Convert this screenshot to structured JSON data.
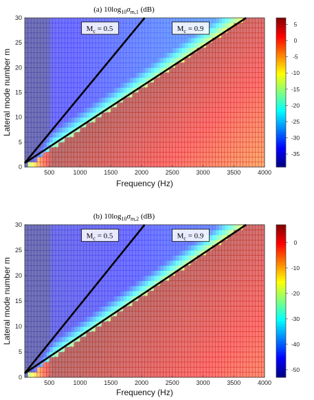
{
  "chart_data": [
    {
      "type": "heatmap",
      "title": "(a) 10log",
      "title_sub": "10",
      "title_sigma": "σ",
      "title_sigma_sub": "m,1",
      "title_unit": "(dB)",
      "xlabel": "Frequency  (Hz)",
      "ylabel": "Lateral mode number m",
      "xlim": [
        100,
        4000
      ],
      "ylim": [
        0,
        30
      ],
      "xticks": [
        500,
        1000,
        1500,
        2000,
        2500,
        3000,
        3500,
        4000
      ],
      "yticks": [
        0,
        5,
        10,
        15,
        20,
        25,
        30
      ],
      "colorbar": {
        "range": [
          -39,
          7
        ],
        "ticks": [
          5,
          0,
          -5,
          -10,
          -15,
          -20,
          -25,
          -30,
          -35
        ],
        "colormap": "jet"
      },
      "annotations": [
        {
          "label": "M",
          "label_sub": "c",
          "value": "= 0.5",
          "line": {
            "x": [
              100,
              2050
            ],
            "y": [
              0.8,
              30
            ]
          }
        },
        {
          "label": "M",
          "label_sub": "c",
          "value": "= 0.9",
          "line": {
            "x": [
              100,
              3700
            ],
            "y": [
              0.8,
              30
            ]
          }
        }
      ]
    },
    {
      "type": "heatmap",
      "title": "(b) 10log",
      "title_sub": "10",
      "title_sigma": "σ",
      "title_sigma_sub": "m,2",
      "title_unit": "(dB)",
      "xlabel": "Frequency  (Hz)",
      "ylabel": "Lateral mode number m",
      "xlim": [
        100,
        4000
      ],
      "ylim": [
        0,
        30
      ],
      "xticks": [
        500,
        1000,
        1500,
        2000,
        2500,
        3000,
        3500,
        4000
      ],
      "yticks": [
        0,
        5,
        10,
        15,
        20,
        25,
        30
      ],
      "colorbar": {
        "range": [
          -53,
          7
        ],
        "ticks": [
          0,
          -10,
          -20,
          -30,
          -40,
          -50
        ],
        "colormap": "jet"
      },
      "annotations": [
        {
          "label": "M",
          "label_sub": "c",
          "value": "= 0.5",
          "line": {
            "x": [
              100,
              2050
            ],
            "y": [
              0.8,
              30
            ]
          }
        },
        {
          "label": "M",
          "label_sub": "c",
          "value": "= 0.9",
          "line": {
            "x": [
              100,
              3700
            ],
            "y": [
              0.8,
              30
            ]
          }
        }
      ]
    }
  ]
}
